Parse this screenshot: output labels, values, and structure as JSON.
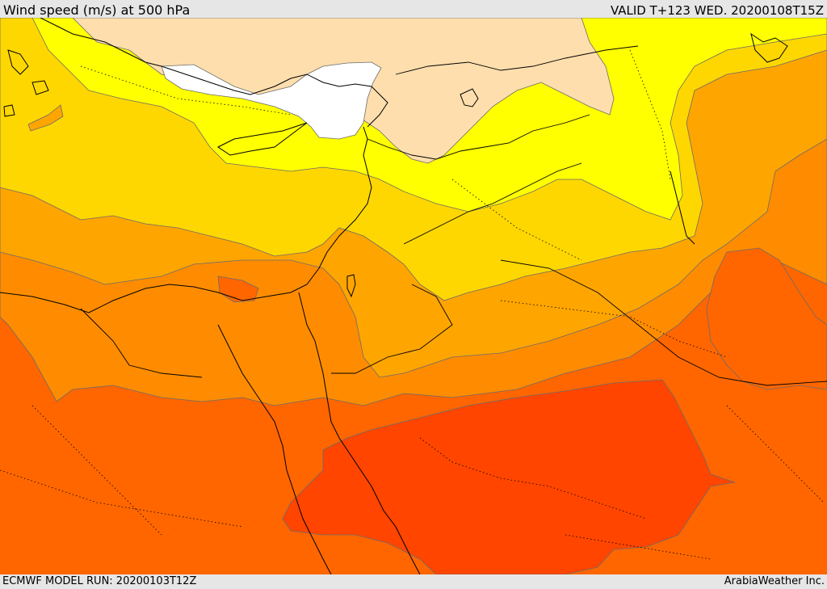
{
  "header": {
    "title": "Wind speed (m/s) at 500 hPa",
    "valid_time": "VALID T+123 WED. 20200108T15Z"
  },
  "footer": {
    "model_run": "ECMWF MODEL RUN: 20200103T12Z",
    "credit": "ArabiaWeather Inc."
  },
  "map": {
    "field": "wind speed at 500 hPa",
    "colors": {
      "band_lowest": "#ffffff",
      "band_1": "#ffdead",
      "band_2": "#ffff00",
      "band_3": "#ffd700",
      "band_4": "#ffa500",
      "band_5": "#ff8c00",
      "band_6": "#ff6600",
      "band_7": "#ff4500",
      "contour_line": "#6b6b6b",
      "coastline": "#000000",
      "border": "#000000"
    }
  }
}
